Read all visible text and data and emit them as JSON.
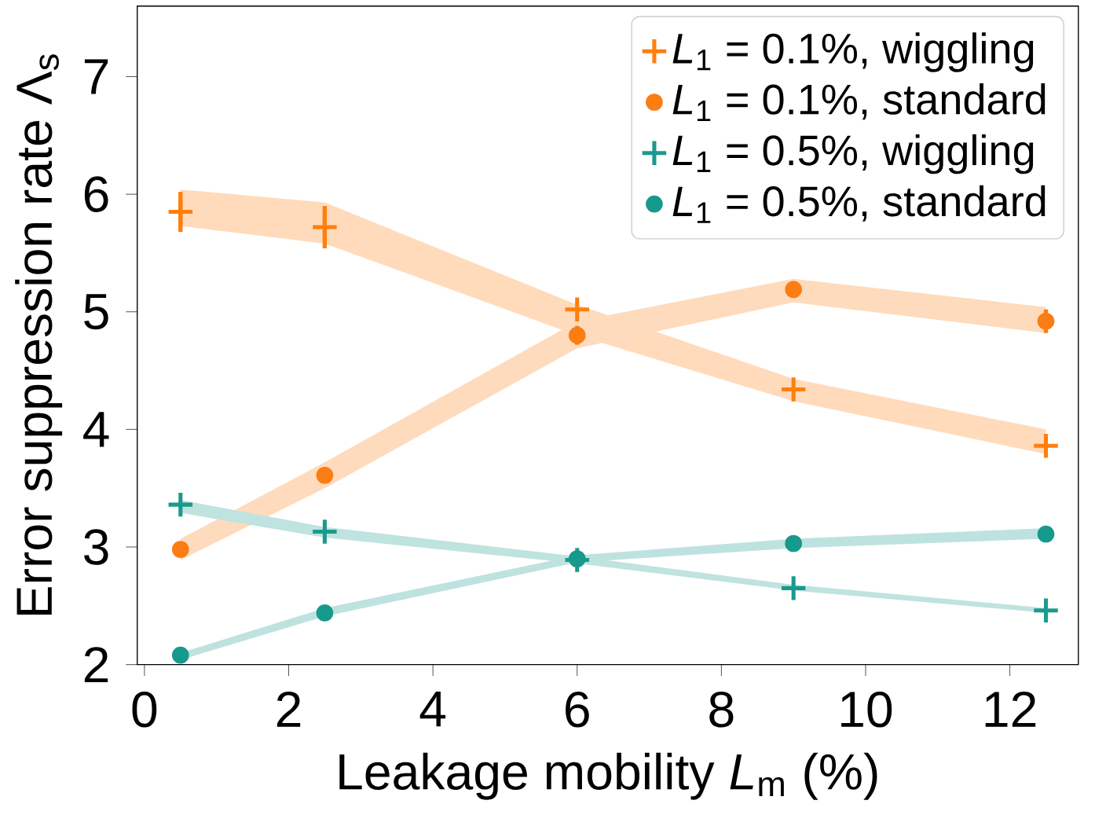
{
  "chart_data": {
    "type": "scatter",
    "xlabel": "Leakage mobility *L*$_{m}$ (%)",
    "ylabel": "Error suppression rate Λ$_{s}$",
    "xlim": [
      -0.1,
      12.95
    ],
    "ylim": [
      2,
      7.6
    ],
    "xticks": [
      0,
      2,
      4,
      6,
      8,
      10,
      12
    ],
    "yticks": [
      2,
      3,
      4,
      5,
      6,
      7
    ],
    "legend": "top right",
    "grid": false,
    "series": [
      {
        "name": "*L*$_{1}$ = 0.1%, wiggling",
        "color": "#ff7f0e",
        "marker": "cross",
        "x": [
          0.5,
          2.5,
          6,
          9,
          12.5
        ],
        "values": [
          5.85,
          5.72,
          5.02,
          4.34,
          3.86
        ],
        "errors": [
          0.17,
          0.18,
          null,
          null,
          null
        ],
        "lower": [
          5.73,
          5.58,
          4.8,
          4.24,
          3.79
        ],
        "upper": [
          6.04,
          5.93,
          5.06,
          4.43,
          4.0
        ]
      },
      {
        "name": "*L*$_{1}$ = 0.1%, standard",
        "color": "#fb7d14",
        "marker": "circle",
        "x": [
          0.5,
          2.5,
          6,
          9,
          12.5
        ],
        "values": [
          2.98,
          3.61,
          4.8,
          5.19,
          4.92
        ],
        "errors": [
          null,
          0.06,
          0.08,
          0.07,
          0.1
        ],
        "lower": [
          2.89,
          3.5,
          4.69,
          5.08,
          4.82
        ],
        "upper": [
          3.07,
          3.72,
          4.92,
          5.28,
          5.04
        ]
      },
      {
        "name": "*L*$_{1}$ = 0.5%, wiggling",
        "color": "#1a9a8e",
        "marker": "cross",
        "x": [
          0.5,
          2.5,
          6,
          9,
          12.5
        ],
        "values": [
          3.36,
          3.13,
          2.89,
          2.65,
          2.46
        ],
        "lower": [
          3.29,
          3.08,
          2.86,
          2.63,
          2.44
        ],
        "upper": [
          3.4,
          3.17,
          2.92,
          2.68,
          2.48
        ]
      },
      {
        "name": "*L*$_{1}$ = 0.5%, standard",
        "color": "#17998c",
        "marker": "circle",
        "x": [
          0.5,
          2.5,
          6,
          9,
          12.5
        ],
        "values": [
          2.08,
          2.44,
          2.9,
          3.03,
          3.11
        ],
        "lower": [
          2.04,
          2.41,
          2.87,
          2.99,
          3.07
        ],
        "upper": [
          2.1,
          2.48,
          2.93,
          3.07,
          3.16
        ]
      }
    ]
  }
}
